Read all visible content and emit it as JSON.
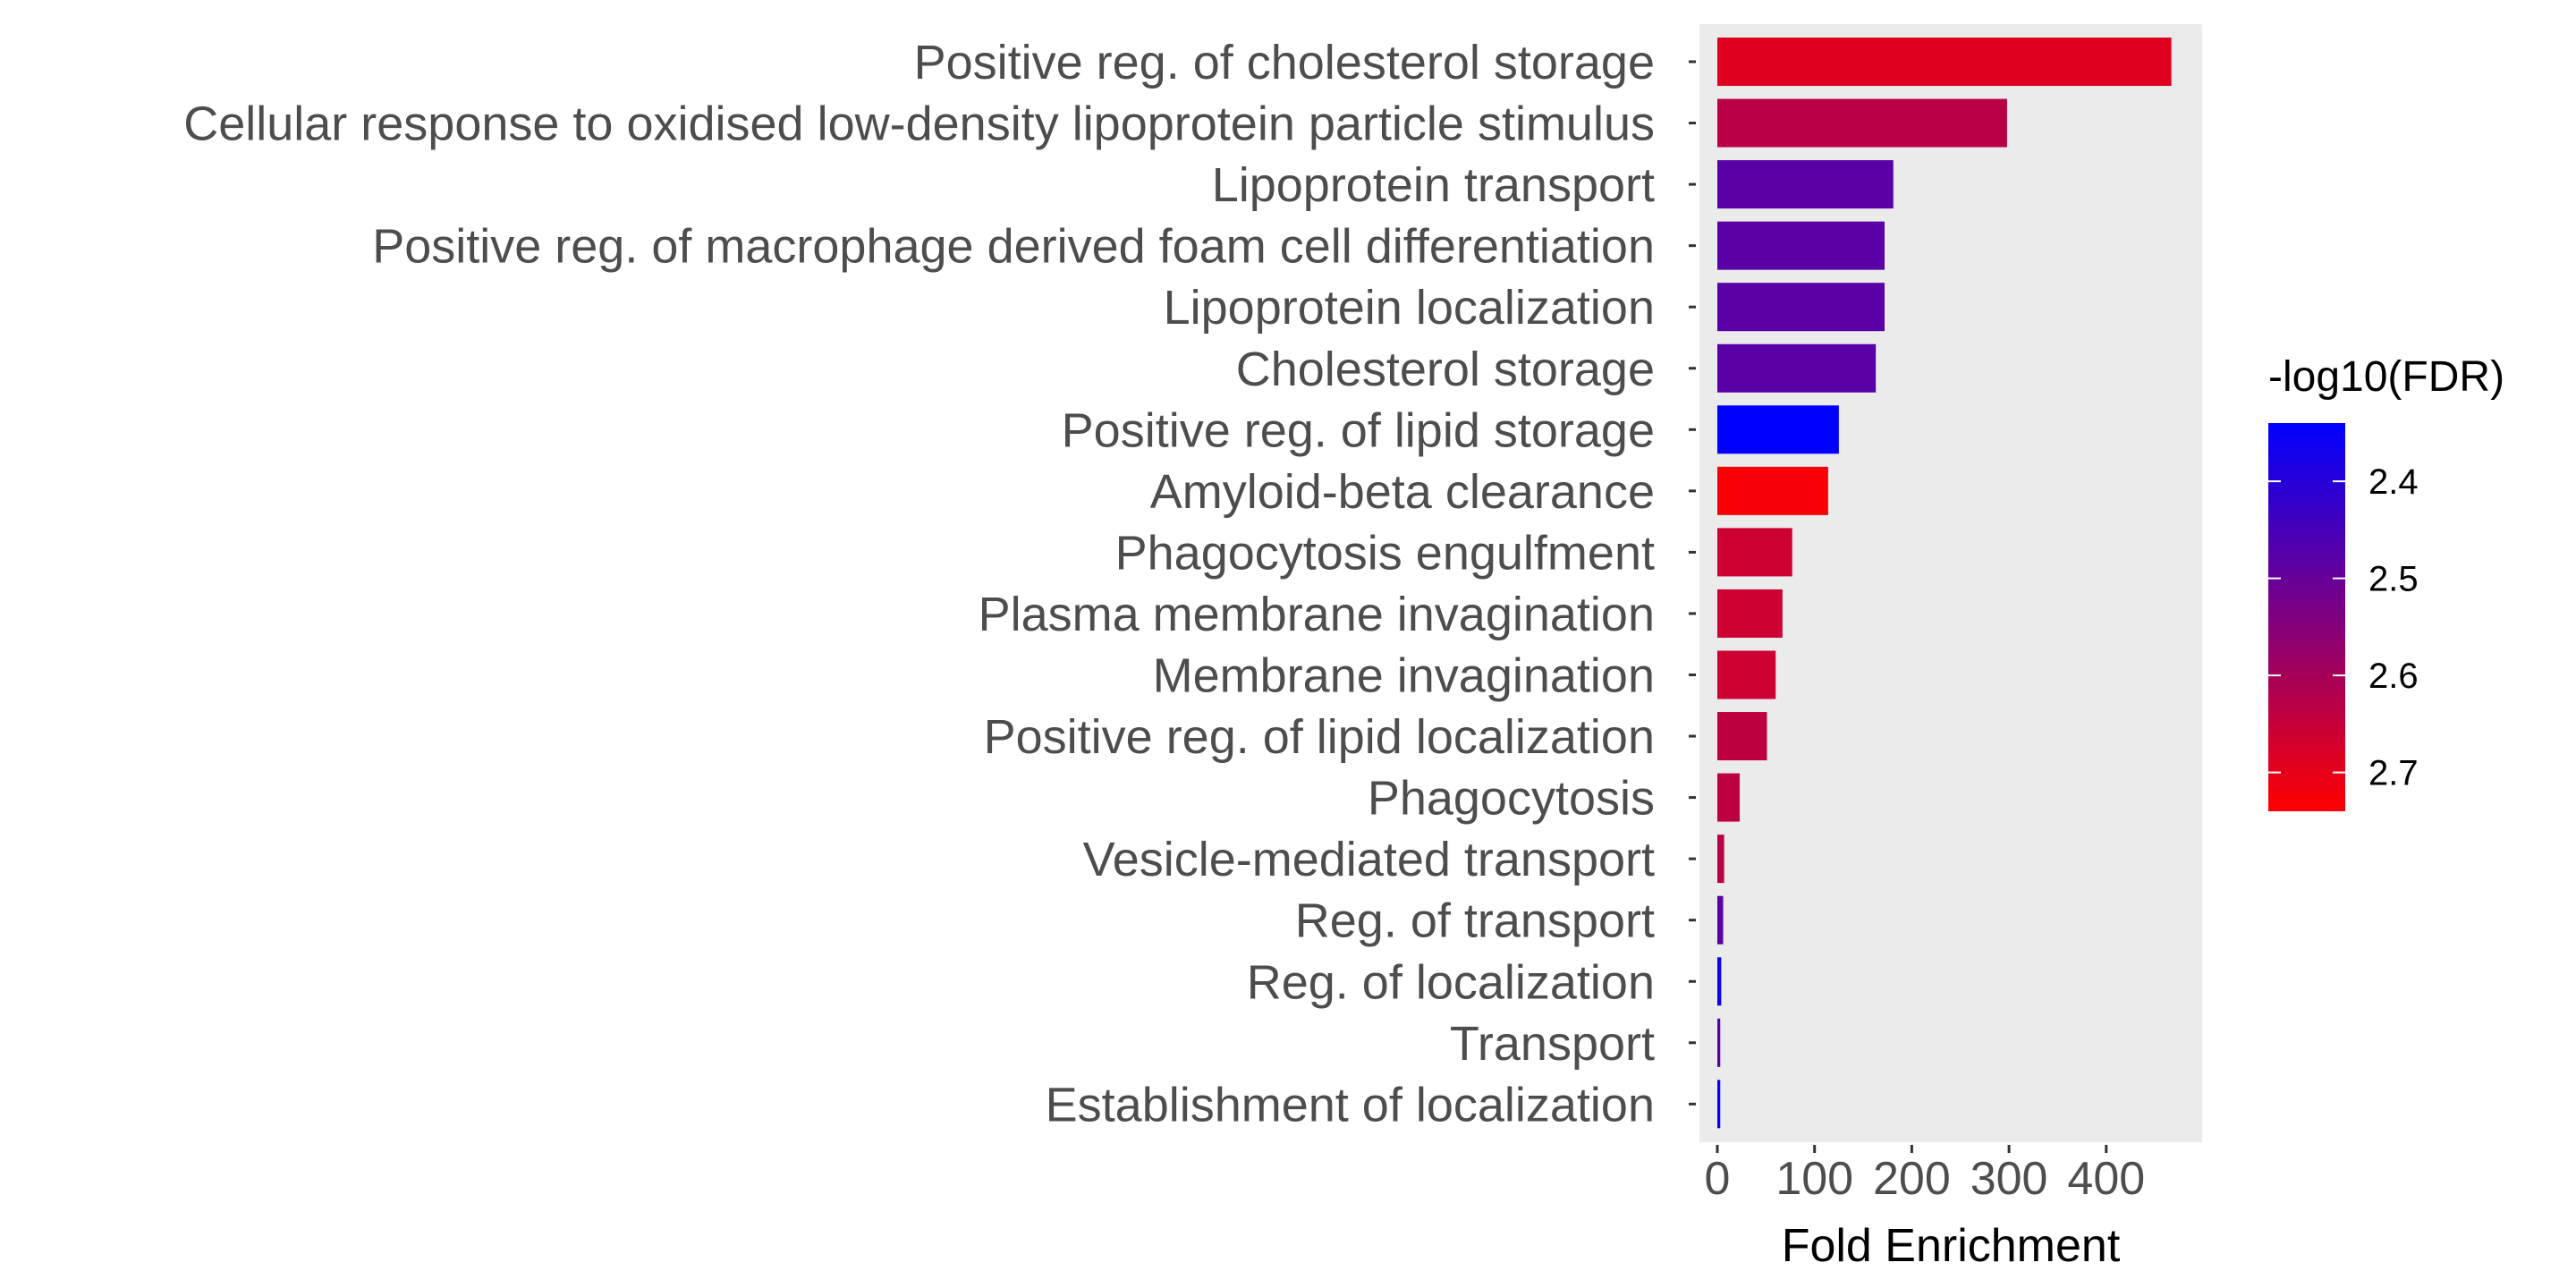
{
  "chart_data": {
    "type": "bar",
    "orientation": "horizontal",
    "categories": [
      "Positive reg. of cholesterol storage",
      "Cellular response to oxidised low-density lipoprotein particle stimulus",
      "Lipoprotein transport",
      "Positive reg. of macrophage derived foam cell differentiation",
      "Lipoprotein localization",
      "Cholesterol storage",
      "Positive reg. of lipid storage",
      "Amyloid-beta clearance",
      "Phagocytosis engulfment",
      "Plasma membrane invagination",
      "Membrane invagination",
      "Positive reg. of lipid localization",
      "Phagocytosis",
      "Vesicle-mediated transport",
      "Reg. of transport",
      "Reg. of localization",
      "Transport",
      "Establishment of localization"
    ],
    "values": [
      467,
      298,
      181,
      172,
      172,
      163,
      125,
      114,
      77,
      67,
      60,
      51,
      23,
      7,
      6,
      4,
      3,
      3
    ],
    "color_values": [
      2.69,
      2.63,
      2.48,
      2.48,
      2.48,
      2.48,
      2.34,
      2.73,
      2.66,
      2.66,
      2.66,
      2.64,
      2.64,
      2.63,
      2.48,
      2.36,
      2.48,
      2.36
    ],
    "title": "",
    "xlabel": "Fold Enrichment",
    "ylabel": "",
    "xlim": [
      -20,
      490
    ],
    "x_ticks": [
      0,
      100,
      200,
      300,
      400
    ],
    "panel_background": "#ebebeb",
    "grid": false,
    "legend": {
      "title": "-log10(FDR)",
      "position": "right",
      "range": [
        2.34,
        2.74
      ],
      "ticks": [
        2.4,
        2.5,
        2.6,
        2.7
      ],
      "color_low": "#0000ff",
      "color_high": "#ff0000"
    }
  }
}
